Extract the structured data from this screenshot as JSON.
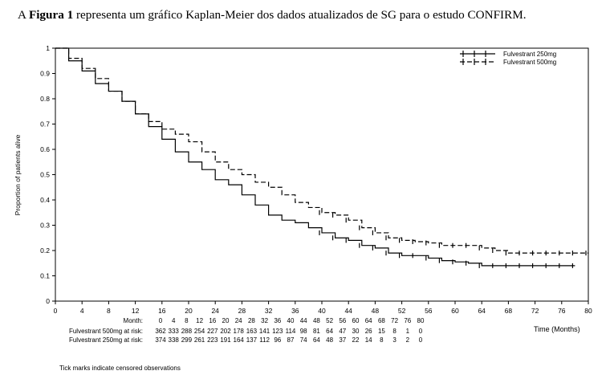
{
  "caption": {
    "prefix": "A ",
    "bold": "Figura 1",
    "rest": " representa um gráfico Kaplan-Meier dos dados atualizados de SG para o estudo CONFIRM."
  },
  "footnote": "Tick marks indicate censored observations",
  "colors": {
    "line": "#000000",
    "axis": "#000000",
    "background": "#ffffff"
  },
  "chart_data": {
    "type": "line",
    "title": "",
    "xlabel": "Time (Months)",
    "ylabel": "Proportion of patients alive",
    "xlim": [
      0,
      80
    ],
    "ylim": [
      0,
      1
    ],
    "x_ticks": [
      0,
      4,
      8,
      12,
      16,
      20,
      24,
      28,
      32,
      36,
      40,
      44,
      48,
      52,
      56,
      60,
      64,
      68,
      72,
      76,
      80
    ],
    "y_ticks": [
      0,
      0.1,
      0.2,
      0.3,
      0.4,
      0.5,
      0.6,
      0.7,
      0.8,
      0.9,
      1
    ],
    "y_tick_labels": [
      "0",
      "0.1",
      "0.2",
      "0.3",
      "0.4",
      "0.5",
      "0.6",
      "0.7",
      "0.8",
      "0.9",
      "1"
    ],
    "grid": false,
    "legend_position": "top-right",
    "series": [
      {
        "name": "Fulvestrant 250mg",
        "style": "solid",
        "x": [
          0,
          2,
          4,
          6,
          8,
          10,
          12,
          14,
          16,
          18,
          20,
          22,
          24,
          26,
          28,
          30,
          32,
          34,
          36,
          38,
          40,
          42,
          44,
          46,
          48,
          50,
          52,
          54,
          56,
          58,
          60,
          62,
          64,
          66,
          68,
          70,
          72,
          74,
          76,
          78
        ],
        "y": [
          1.0,
          0.95,
          0.91,
          0.86,
          0.83,
          0.79,
          0.74,
          0.69,
          0.64,
          0.59,
          0.55,
          0.52,
          0.48,
          0.46,
          0.42,
          0.38,
          0.34,
          0.32,
          0.31,
          0.29,
          0.27,
          0.25,
          0.24,
          0.22,
          0.21,
          0.19,
          0.18,
          0.18,
          0.17,
          0.16,
          0.155,
          0.15,
          0.14,
          0.14,
          0.14,
          0.14,
          0.14,
          0.14,
          0.14,
          0.14
        ]
      },
      {
        "name": "Fulvestrant 500mg",
        "style": "dashed",
        "x": [
          0,
          2,
          4,
          6,
          8,
          10,
          12,
          14,
          16,
          18,
          20,
          22,
          24,
          26,
          28,
          30,
          32,
          34,
          36,
          38,
          40,
          42,
          44,
          46,
          48,
          50,
          52,
          54,
          56,
          58,
          60,
          62,
          64,
          66,
          68,
          70,
          72,
          74,
          76,
          78,
          80
        ],
        "y": [
          1.0,
          0.96,
          0.92,
          0.88,
          0.83,
          0.79,
          0.74,
          0.71,
          0.68,
          0.66,
          0.63,
          0.59,
          0.55,
          0.52,
          0.5,
          0.47,
          0.45,
          0.42,
          0.39,
          0.37,
          0.35,
          0.34,
          0.32,
          0.29,
          0.27,
          0.25,
          0.24,
          0.235,
          0.23,
          0.22,
          0.22,
          0.22,
          0.21,
          0.2,
          0.19,
          0.19,
          0.19,
          0.19,
          0.19,
          0.19,
          0.19
        ]
      }
    ],
    "risk_table": {
      "header_label": "Month:",
      "months": [
        "0",
        "4",
        "8",
        "12",
        "16",
        "20",
        "24",
        "28",
        "32",
        "36",
        "40",
        "44",
        "48",
        "52",
        "56",
        "60",
        "64",
        "68",
        "72",
        "76",
        "80"
      ],
      "rows": [
        {
          "label": "Fulvestrant 500mg at risk:",
          "values": [
            "362",
            "333",
            "288",
            "254",
            "227",
            "202",
            "178",
            "163",
            "141",
            "123",
            "114",
            "98",
            "81",
            "64",
            "47",
            "30",
            "26",
            "15",
            "8",
            "1",
            "0"
          ]
        },
        {
          "label": "Fulvestrant 250mg at risk:",
          "values": [
            "374",
            "338",
            "299",
            "261",
            "223",
            "191",
            "164",
            "137",
            "112",
            "96",
            "87",
            "74",
            "64",
            "48",
            "37",
            "22",
            "14",
            "8",
            "3",
            "2",
            "0"
          ]
        }
      ]
    }
  }
}
